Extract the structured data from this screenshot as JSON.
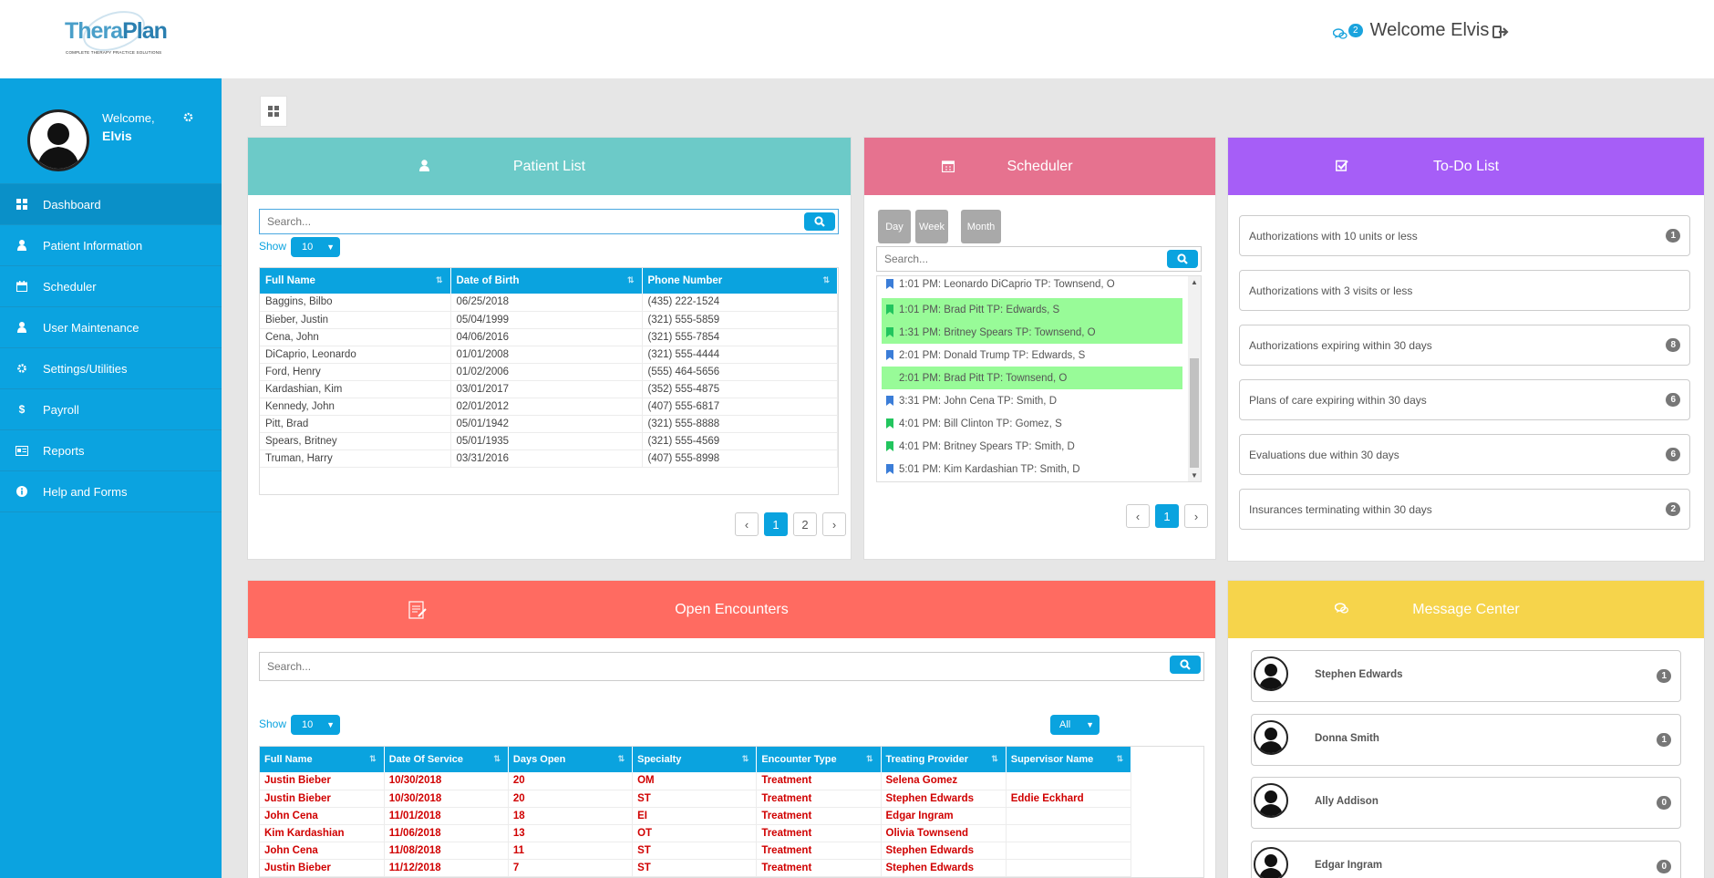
{
  "header": {
    "logo_main": "Thera",
    "logo_main2": "Plan",
    "logo_tagline": "COMPLETE THERAPY PRACTICE SOLUTIONS",
    "notification_count": "2",
    "welcome": "Welcome Elvis"
  },
  "sidebar": {
    "welcome": "Welcome,",
    "user": "Elvis",
    "items": [
      {
        "label": "Dashboard",
        "icon": "dashboard-icon"
      },
      {
        "label": "Patient Information",
        "icon": "user-icon"
      },
      {
        "label": "Scheduler",
        "icon": "calendar-icon"
      },
      {
        "label": "User Maintenance",
        "icon": "user-icon"
      },
      {
        "label": "Settings/Utilities",
        "icon": "gear-icon"
      },
      {
        "label": "Payroll",
        "icon": "dollar-icon"
      },
      {
        "label": "Reports",
        "icon": "report-icon"
      },
      {
        "label": "Help and Forms",
        "icon": "info-icon"
      }
    ]
  },
  "patient_list": {
    "title": "Patient List",
    "search_placeholder": "Search...",
    "show_label": "Show",
    "show_value": "10",
    "columns": [
      "Full Name",
      "Date of Birth",
      "Phone Number"
    ],
    "rows": [
      [
        "Baggins, Bilbo",
        "06/25/2018",
        "(435) 222-1524"
      ],
      [
        "Bieber, Justin",
        "05/04/1999",
        "(321) 555-5859"
      ],
      [
        "Cena, John",
        "04/06/2016",
        "(321) 555-7854"
      ],
      [
        "DiCaprio, Leonardo",
        "01/01/2008",
        "(321) 555-4444"
      ],
      [
        "Ford, Henry",
        "01/02/2006",
        "(555) 464-5656"
      ],
      [
        "Kardashian, Kim",
        "03/01/2017",
        "(352) 555-4875"
      ],
      [
        "Kennedy, John",
        "02/01/2012",
        "(407) 555-6817"
      ],
      [
        "Pitt, Brad",
        "05/01/1942",
        "(321) 555-8888"
      ],
      [
        "Spears, Britney",
        "05/01/1935",
        "(321) 555-4569"
      ],
      [
        "Truman, Harry",
        "03/31/2016",
        "(407) 555-8998"
      ]
    ],
    "pages": [
      "1",
      "2"
    ],
    "prev": "‹",
    "next": "›"
  },
  "scheduler": {
    "title": "Scheduler",
    "views": [
      "Day",
      "Week",
      "Month"
    ],
    "search_placeholder": "Search...",
    "appointments": [
      {
        "text": "1:01 PM: Leonardo DiCaprio TP: Townsend, O",
        "highlight": false,
        "marker": "blue"
      },
      {
        "text": "1:01 PM: Brad Pitt TP: Edwards, S",
        "highlight": true,
        "marker": "green"
      },
      {
        "text": "1:31 PM: Britney Spears TP: Townsend, O",
        "highlight": true,
        "marker": "green"
      },
      {
        "text": "2:01 PM: Donald Trump TP: Edwards, S",
        "highlight": false,
        "marker": "blue"
      },
      {
        "text": "2:01 PM: Brad Pitt TP: Townsend, O",
        "highlight": true,
        "marker": "none"
      },
      {
        "text": "3:31 PM: John Cena TP: Smith, D",
        "highlight": false,
        "marker": "blue"
      },
      {
        "text": "4:01 PM: Bill Clinton TP: Gomez, S",
        "highlight": false,
        "marker": "green"
      },
      {
        "text": "4:01 PM: Britney Spears TP: Smith, D",
        "highlight": false,
        "marker": "green"
      },
      {
        "text": "5:01 PM: Kim Kardashian TP: Smith, D",
        "highlight": false,
        "marker": "blue"
      }
    ],
    "page": "1",
    "prev": "‹",
    "next": "›"
  },
  "todo": {
    "title": "To-Do List",
    "items": [
      {
        "label": "Authorizations with 10 units or less",
        "count": "1"
      },
      {
        "label": "Authorizations with 3 visits or less",
        "count": ""
      },
      {
        "label": "Authorizations expiring within 30 days",
        "count": "8"
      },
      {
        "label": "Plans of care expiring within 30 days",
        "count": "6"
      },
      {
        "label": "Evaluations due within 30 days",
        "count": "6"
      },
      {
        "label": "Insurances terminating within 30 days",
        "count": "2"
      }
    ]
  },
  "encounters": {
    "title": "Open Encounters",
    "search_placeholder": "Search...",
    "show_label": "Show",
    "show_value": "10",
    "filter_value": "All",
    "columns": [
      "Full Name",
      "Date Of Service",
      "Days Open",
      "Specialty",
      "Encounter Type",
      "Treating Provider",
      "Supervisor Name"
    ],
    "rows": [
      [
        "Justin Bieber",
        "10/30/2018",
        "20",
        "OM",
        "Treatment",
        "Selena Gomez",
        ""
      ],
      [
        "Justin Bieber",
        "10/30/2018",
        "20",
        "ST",
        "Treatment",
        "Stephen Edwards",
        "Eddie Eckhard"
      ],
      [
        "John Cena",
        "11/01/2018",
        "18",
        "EI",
        "Treatment",
        "Edgar Ingram",
        ""
      ],
      [
        "Kim Kardashian",
        "11/06/2018",
        "13",
        "OT",
        "Treatment",
        "Olivia Townsend",
        ""
      ],
      [
        "John Cena",
        "11/08/2018",
        "11",
        "ST",
        "Treatment",
        "Stephen Edwards",
        ""
      ],
      [
        "Justin Bieber",
        "11/12/2018",
        "7",
        "ST",
        "Treatment",
        "Stephen Edwards",
        ""
      ]
    ]
  },
  "messages": {
    "title": "Message Center",
    "contacts": [
      {
        "name": "Stephen Edwards",
        "count": "1"
      },
      {
        "name": "Donna Smith",
        "count": "1"
      },
      {
        "name": "Ally Addison",
        "count": "0"
      },
      {
        "name": "Edgar Ingram",
        "count": "0"
      }
    ]
  },
  "colors": {
    "sidebar": "#0ba3e0",
    "patient_header": "#6ccac8",
    "scheduler_header": "#e6728f",
    "todo_header": "#a65ef7",
    "encounters_header": "#ff6b61",
    "messages_header": "#f6d44b",
    "accent": "#0aa3df",
    "highlight": "#98fb98"
  }
}
